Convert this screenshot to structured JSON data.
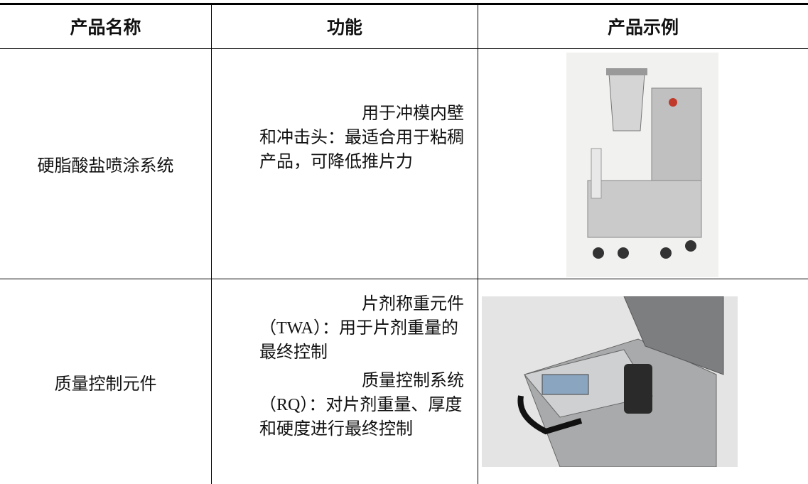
{
  "table": {
    "headers": [
      "产品名称",
      "功能",
      "产品示例"
    ],
    "rows": [
      {
        "name": "硬脂酸盐喷涂系统",
        "function": [
          "用于冲模内壁和冲击头：最适合用于粘稠产品，可降低推片力"
        ]
      },
      {
        "name": "质量控制元件",
        "function": [
          "片剂称重元件（TWA）：用于片剂重量的最终控制",
          "质量控制系统（RQ）：对片剂重量、厚度和硬度进行最终控制"
        ]
      }
    ]
  }
}
